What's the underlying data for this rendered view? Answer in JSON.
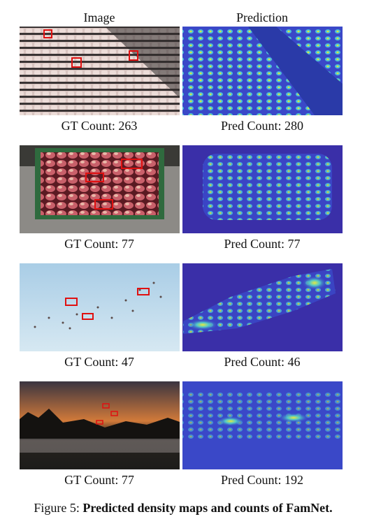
{
  "header": {
    "left": "Image",
    "right": "Prediction"
  },
  "rows": [
    {
      "gt": "GT Count: 263",
      "pred": "Pred Count: 280"
    },
    {
      "gt": "GT Count: 77",
      "pred": "Pred Count: 77"
    },
    {
      "gt": "GT Count: 47",
      "pred": "Pred Count: 46"
    },
    {
      "gt": "GT Count: 77",
      "pred": "Pred Count: 192"
    }
  ],
  "caption": {
    "label": "Figure 5:",
    "text": "Predicted density maps and counts of FamNet."
  }
}
